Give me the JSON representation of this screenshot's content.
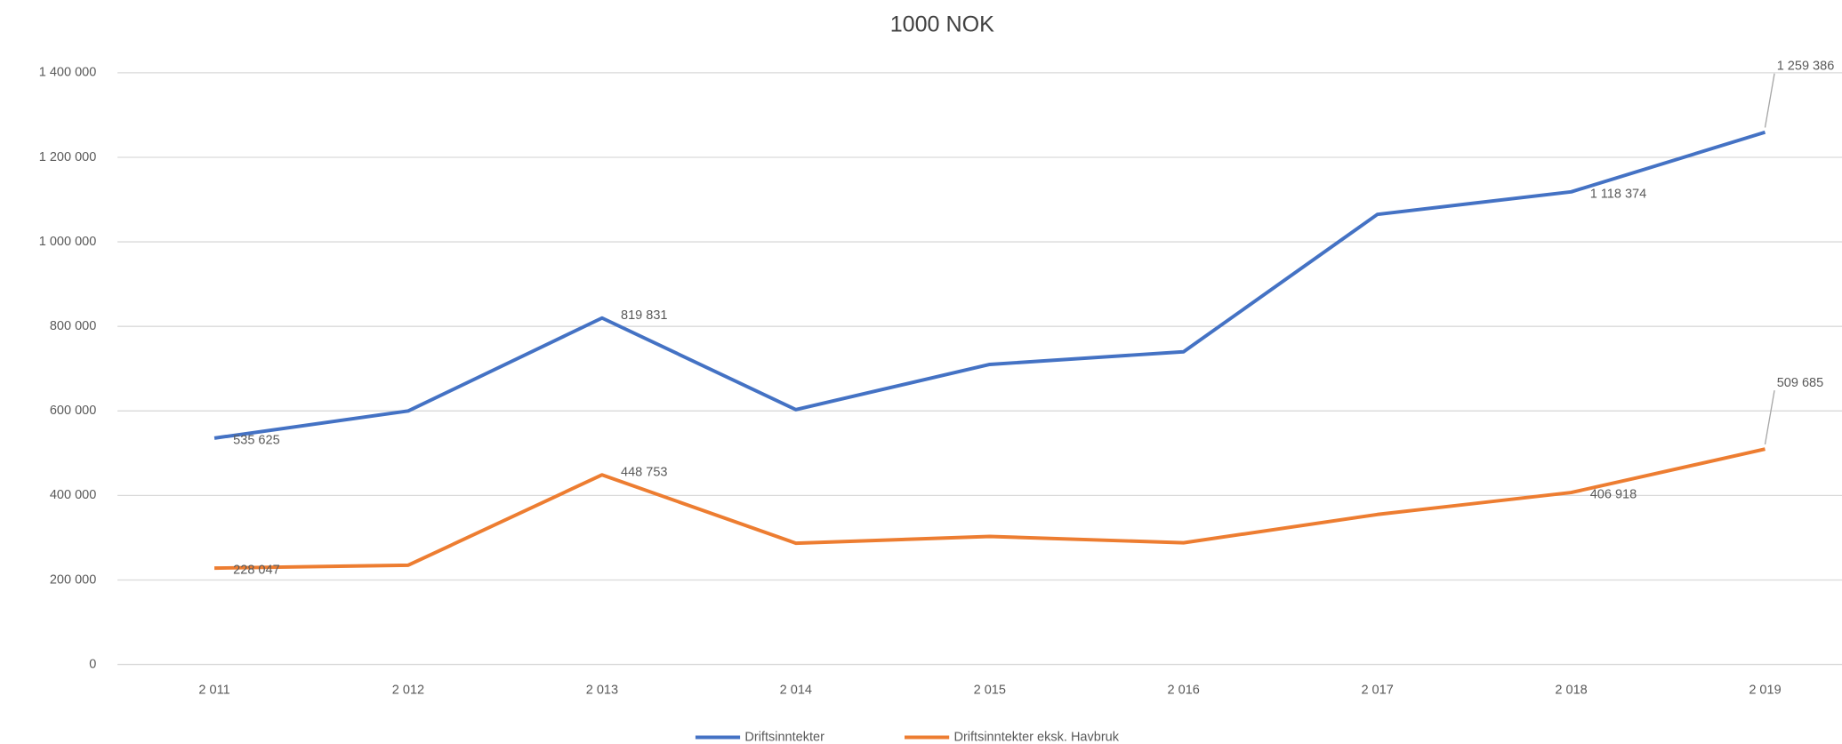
{
  "chart_data": {
    "type": "line",
    "title": "1000 NOK",
    "categories": [
      "2 011",
      "2 012",
      "2 013",
      "2 014",
      "2 015",
      "2 016",
      "2 017",
      "2 018",
      "2 019"
    ],
    "series": [
      {
        "name": "Driftsinntekter",
        "color": "#4472c4",
        "values": [
          535625,
          600000,
          819831,
          603000,
          710000,
          740000,
          1065000,
          1118374,
          1259386
        ],
        "value_labels": [
          "535 625",
          null,
          "819 831",
          null,
          null,
          null,
          null,
          "1 118 374",
          "1 259 386"
        ]
      },
      {
        "name": "Driftsinntekter eksk. Havbruk",
        "color": "#ed7d31",
        "values": [
          228047,
          235000,
          448753,
          287000,
          303000,
          288000,
          355000,
          406918,
          509685
        ],
        "value_labels": [
          "228 047",
          null,
          "448 753",
          null,
          null,
          null,
          null,
          "406 918",
          "509 685"
        ]
      }
    ],
    "ylim": [
      0,
      1400000
    ],
    "yticks": [
      0,
      {
        "value": 200000,
        "label": "200 000"
      },
      {
        "value": 400000,
        "label": "400 000"
      },
      {
        "value": 600000,
        "label": "600 000"
      },
      {
        "value": 800000,
        "label": "800 000"
      },
      {
        "value": 1000000,
        "label": "1 000 000"
      },
      {
        "value": 1200000,
        "label": "1 200 000"
      },
      {
        "value": 1400000,
        "label": "1 400 000"
      }
    ],
    "grid": true,
    "legend": "bottom"
  }
}
